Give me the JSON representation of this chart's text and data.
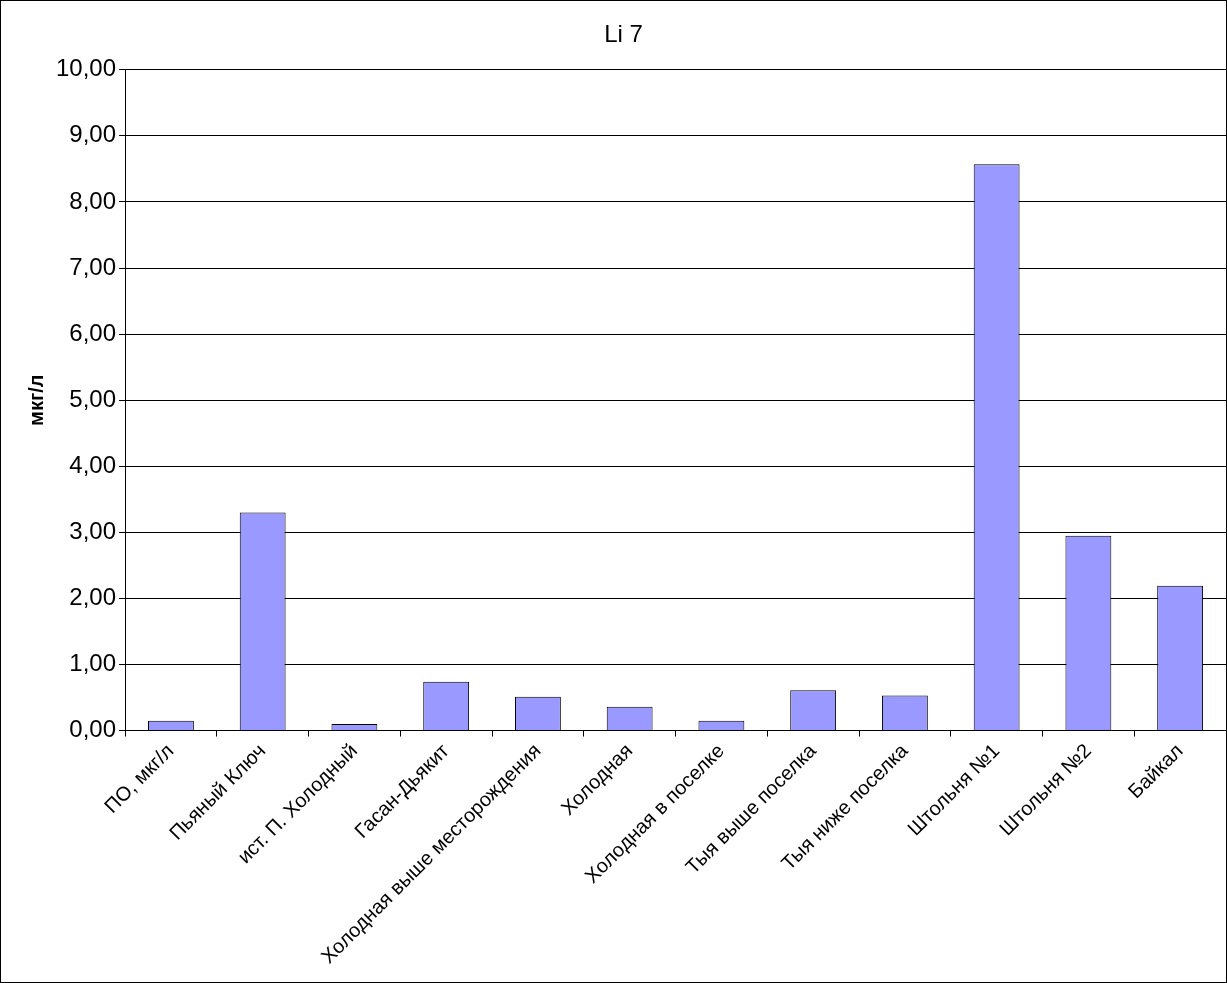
{
  "chart_data": {
    "type": "bar",
    "title": "Li 7",
    "ylabel": "мкг/л",
    "categories": [
      "ПО, мкг/л",
      "Пьяный Ключ",
      "ист. П. Холодный",
      "Гасан-Дьякит",
      "Холодная выше месторождения",
      "Холодная",
      "Холодная в поселке",
      "Тыя выше поселка",
      "Тыя ниже поселка",
      "Штольня №1",
      "Штольня №2",
      "Байкал"
    ],
    "values": [
      0.15,
      3.3,
      0.1,
      0.74,
      0.51,
      0.36,
      0.15,
      0.61,
      0.53,
      8.57,
      2.95,
      2.19
    ],
    "color": "#9999ff",
    "ylim": [
      0,
      10
    ],
    "yticks": [
      {
        "value": 0,
        "label": "0,00"
      },
      {
        "value": 1,
        "label": "1,00"
      },
      {
        "value": 2,
        "label": "2,00"
      },
      {
        "value": 3,
        "label": "3,00"
      },
      {
        "value": 4,
        "label": "4,00"
      },
      {
        "value": 5,
        "label": "5,00"
      },
      {
        "value": 6,
        "label": "6,00"
      },
      {
        "value": 7,
        "label": "7,00"
      },
      {
        "value": 8,
        "label": "8,00"
      },
      {
        "value": 9,
        "label": "9,00"
      },
      {
        "value": 10,
        "label": "10,00"
      }
    ],
    "grid": "y"
  }
}
